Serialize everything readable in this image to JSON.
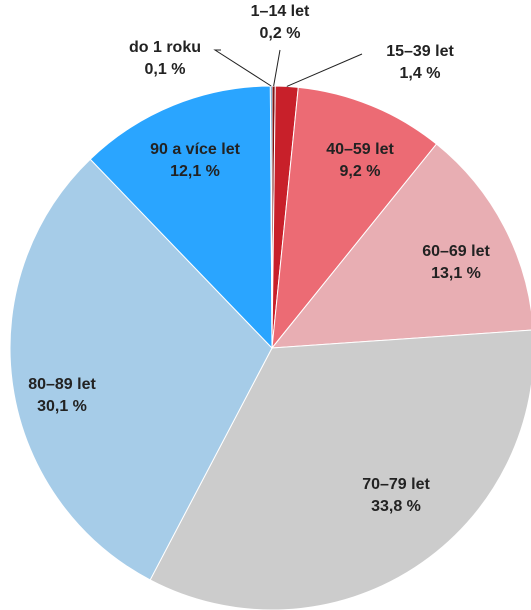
{
  "chart_data": {
    "type": "pie",
    "categories": [
      "1–14 let",
      "15–39 let",
      "40–59 let",
      "60–69 let",
      "70–79 let",
      "80–89 let",
      "90 a více let",
      "do 1 roku"
    ],
    "values": [
      0.2,
      1.4,
      9.2,
      13.1,
      33.8,
      30.1,
      12.1,
      0.1
    ],
    "value_labels": [
      "0,2 %",
      "1,4 %",
      "9,2 %",
      "13,1 %",
      "33,8 %",
      "30,1 %",
      "12,1 %",
      "0,1 %"
    ],
    "colors": [
      "#7a1416",
      "#c8202a",
      "#ec6b74",
      "#e8aeb3",
      "#cccccc",
      "#a6cce8",
      "#2aa5ff",
      "#1a6fb0"
    ]
  }
}
